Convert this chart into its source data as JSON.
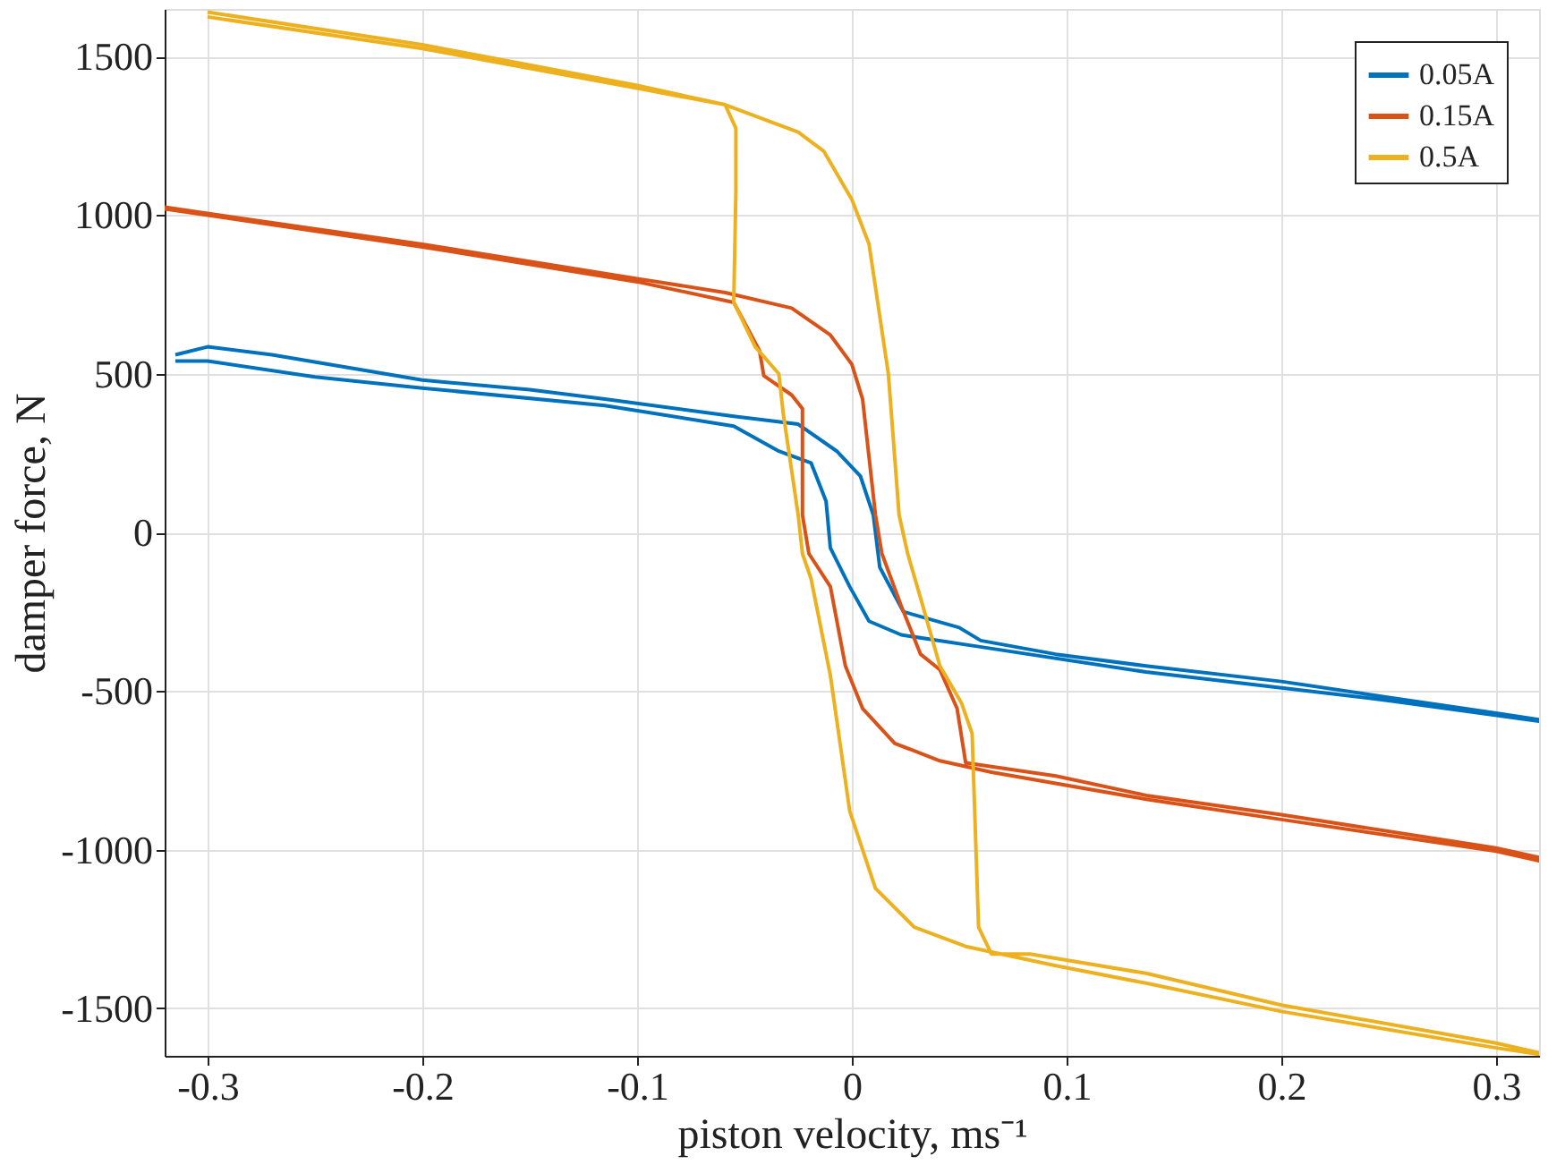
{
  "chart_data": {
    "type": "line",
    "xlabel": "piston velocity, ms⁻¹",
    "ylabel": "damper force, N",
    "xlim": [
      -0.32,
      0.32
    ],
    "ylim": [
      -1650,
      1650
    ],
    "xticks": [
      -0.3,
      -0.2,
      -0.1,
      0,
      0.1,
      0.2,
      0.3
    ],
    "yticks": [
      -1500,
      -1000,
      -500,
      0,
      500,
      1000,
      1500
    ],
    "grid": true,
    "legend": "top right",
    "marker": "none",
    "line_style": "solid",
    "series": [
      {
        "name": "0.05A",
        "color": "#0072bd",
        "x": [
          -0.315,
          -0.3,
          -0.27,
          -0.2,
          -0.15,
          -0.115,
          -0.055,
          -0.025,
          -0.007,
          0.004,
          0.01,
          0.013,
          0.024,
          0.05,
          0.06,
          0.095,
          0.137,
          0.2,
          0.25,
          0.3,
          0.32,
          0.32,
          0.25,
          0.2,
          0.137,
          0.059,
          0.023,
          0.008,
          -0.001,
          -0.01,
          -0.012,
          -0.019,
          -0.034,
          -0.055,
          -0.115,
          -0.2,
          -0.25,
          -0.3,
          -0.315
        ],
        "values": [
          560,
          585,
          560,
          480,
          450,
          420,
          366,
          341,
          256,
          177,
          55,
          -110,
          -250,
          -300,
          -341,
          -384,
          -421,
          -470,
          -520,
          -570,
          -590,
          -595,
          -530,
          -490,
          -440,
          -360,
          -323,
          -280,
          -171,
          -49,
          98,
          219,
          256,
          335,
          400,
          455,
          490,
          540,
          540
        ]
      },
      {
        "name": "0.15A",
        "color": "#d95319",
        "x": [
          -0.32,
          -0.2,
          -0.1,
          -0.059,
          -0.028,
          -0.01,
          0,
          0.005,
          0.011,
          0.014,
          0.023,
          0.032,
          0.041,
          0.049,
          0.053,
          0.065,
          0.095,
          0.137,
          0.2,
          0.3,
          0.32,
          0.32,
          0.3,
          0.2,
          0.137,
          0.065,
          0.041,
          0.02,
          0.005,
          -0.003,
          -0.01,
          -0.02,
          -0.023,
          -0.023,
          -0.028,
          -0.041,
          -0.043,
          -0.055,
          -0.1,
          -0.2,
          -0.32
        ],
        "values": [
          1025,
          908,
          800,
          756,
          707,
          622,
          530,
          420,
          55,
          -67,
          -232,
          -384,
          -433,
          -555,
          -726,
          -738,
          -768,
          -829,
          -890,
          -995,
          -1025,
          -1035,
          -1005,
          -905,
          -841,
          -756,
          -720,
          -665,
          -555,
          -421,
          -171,
          -67,
          55,
          390,
          433,
          494,
          573,
          725,
          790,
          900,
          1020
        ]
      },
      {
        "name": "0.5A",
        "color": "#edb120",
        "x": [
          -0.3,
          -0.2,
          -0.1,
          -0.059,
          -0.025,
          -0.013,
          0,
          0.008,
          0.017,
          0.022,
          0.026,
          0.032,
          0.041,
          0.051,
          0.056,
          0.059,
          0.065,
          0.083,
          0.137,
          0.2,
          0.3,
          0.32,
          0.32,
          0.3,
          0.2,
          0.137,
          0.095,
          0.053,
          0.029,
          0.011,
          -0.001,
          -0.01,
          -0.019,
          -0.023,
          -0.025,
          -0.032,
          -0.034,
          -0.045,
          -0.055,
          -0.054,
          -0.054,
          -0.059,
          -0.1,
          -0.2,
          -0.3
        ],
        "values": [
          1640,
          1537,
          1409,
          1348,
          1262,
          1201,
          1049,
          909,
          500,
          55,
          -67,
          -207,
          -421,
          -537,
          -634,
          -1244,
          -1329,
          -1329,
          -1390,
          -1490,
          -1610,
          -1640,
          -1645,
          -1625,
          -1510,
          -1421,
          -1366,
          -1305,
          -1244,
          -1122,
          -878,
          -451,
          -146,
          -67,
          55,
          378,
          500,
          585,
          726,
          1073,
          1274,
          1348,
          1400,
          1525,
          1625
        ]
      }
    ]
  }
}
